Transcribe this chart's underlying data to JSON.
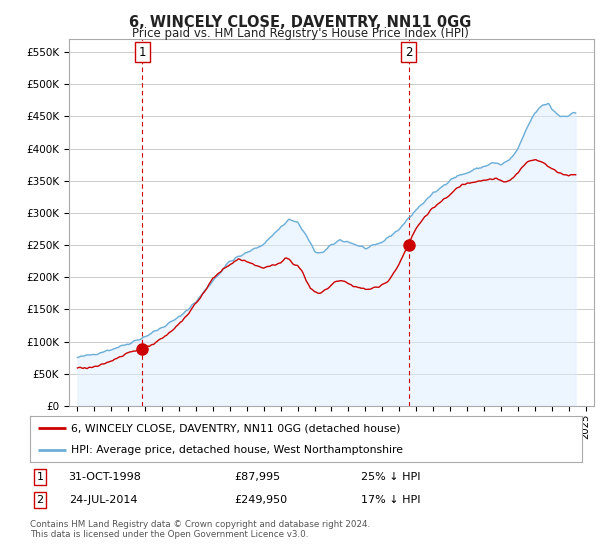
{
  "title": "6, WINCELY CLOSE, DAVENTRY, NN11 0GG",
  "subtitle": "Price paid vs. HM Land Registry's House Price Index (HPI)",
  "footer": "Contains HM Land Registry data © Crown copyright and database right 2024.\nThis data is licensed under the Open Government Licence v3.0.",
  "legend_line1": "6, WINCELY CLOSE, DAVENTRY, NN11 0GG (detached house)",
  "legend_line2": "HPI: Average price, detached house, West Northamptonshire",
  "sale1_label": "1",
  "sale1_date": "31-OCT-1998",
  "sale1_price": "£87,995",
  "sale1_hpi": "25% ↓ HPI",
  "sale1_x": 1998.83,
  "sale1_y": 87995,
  "sale2_label": "2",
  "sale2_date": "24-JUL-2014",
  "sale2_price": "£249,950",
  "sale2_hpi": "17% ↓ HPI",
  "sale2_x": 2014.55,
  "sale2_y": 249950,
  "hpi_color": "#6baed6",
  "hpi_fill_color": "#ddeeff",
  "sale_color": "#cc0000",
  "vline_color": "#cc0000",
  "background_color": "#ffffff",
  "grid_color": "#cccccc",
  "ylim": [
    0,
    570000
  ],
  "xlim": [
    1994.5,
    2025.5
  ],
  "yticks": [
    0,
    50000,
    100000,
    150000,
    200000,
    250000,
    300000,
    350000,
    400000,
    450000,
    500000,
    550000
  ],
  "ytick_labels": [
    "£0",
    "£50K",
    "£100K",
    "£150K",
    "£200K",
    "£250K",
    "£300K",
    "£350K",
    "£400K",
    "£450K",
    "£500K",
    "£550K"
  ],
  "xticks": [
    1995,
    1996,
    1997,
    1998,
    1999,
    2000,
    2001,
    2002,
    2003,
    2004,
    2005,
    2006,
    2007,
    2008,
    2009,
    2010,
    2011,
    2012,
    2013,
    2014,
    2015,
    2016,
    2017,
    2018,
    2019,
    2020,
    2021,
    2022,
    2023,
    2024,
    2025
  ]
}
